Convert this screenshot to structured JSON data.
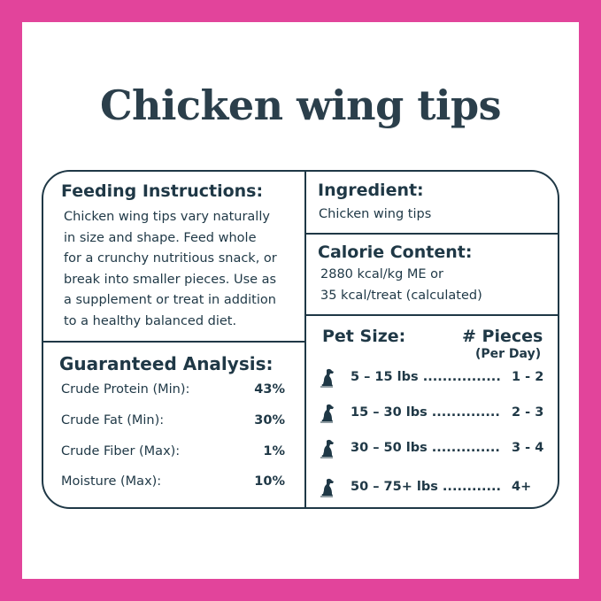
{
  "title": "Chicken wing tips",
  "feeding": {
    "heading": "Feeding Instructions:",
    "lines": [
      "Chicken wing tips vary naturally",
      "in size and shape. Feed whole",
      "for a crunchy nutritious snack, or",
      "break into smaller pieces. Use as",
      "a supplement or treat in addition",
      "to a healthy balanced diet."
    ]
  },
  "analysis": {
    "heading": "Guaranteed Analysis:",
    "rows": [
      {
        "label": "Crude Protein (Min):",
        "value": "43%"
      },
      {
        "label": "Crude Fat (Min):",
        "value": "30%"
      },
      {
        "label": "Crude Fiber (Max):",
        "value": "1%"
      },
      {
        "label": "Moisture (Max):",
        "value": "10%"
      }
    ]
  },
  "ingredient": {
    "heading": "Ingredient:",
    "text": "Chicken wing tips"
  },
  "calorie": {
    "heading": "Calorie Content:",
    "lines": [
      "2880 kcal/kg ME or",
      "35 kcal/treat (calculated)"
    ]
  },
  "pets": {
    "heading": "Pet Size:",
    "pieces_heading": "# Pieces",
    "pieces_sub": "(Per Day)",
    "icon": "sitting-dog-icon",
    "rows": [
      {
        "size": "5 – 15 lbs ................",
        "count": "1 - 2"
      },
      {
        "size": "15 – 30 lbs ..............",
        "count": "2 - 3"
      },
      {
        "size": "30 – 50 lbs ..............",
        "count": "3 - 4"
      },
      {
        "size": "50 – 75+ lbs ............",
        "count": "4+"
      }
    ]
  },
  "colors": {
    "border": "#e2449b",
    "text": "#1f3846"
  }
}
